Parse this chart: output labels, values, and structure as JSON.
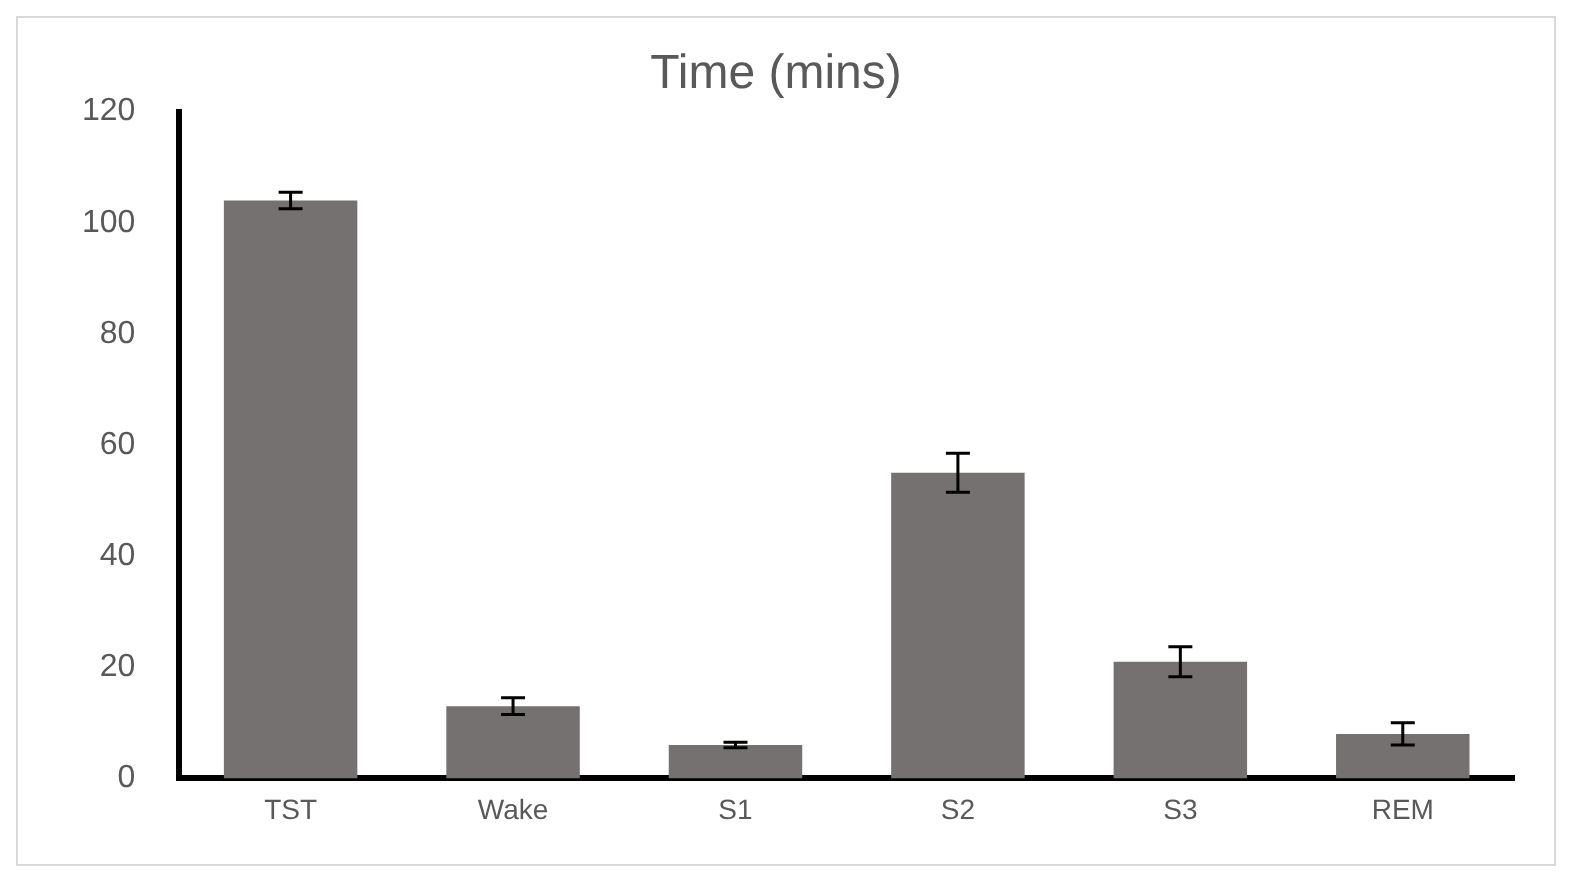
{
  "chart_data": {
    "type": "bar",
    "title": "Time (mins)",
    "categories": [
      "TST",
      "Wake",
      "S1",
      "S2",
      "S3",
      "REM"
    ],
    "values": [
      104,
      13,
      6,
      55,
      21,
      8
    ],
    "errors": [
      1.5,
      1.5,
      0.5,
      3.5,
      2.7,
      2
    ],
    "color": "#757171",
    "ylim": [
      0,
      120
    ],
    "yticks": [
      0,
      20,
      40,
      60,
      80,
      100,
      120
    ],
    "grid": false,
    "legend": false
  }
}
